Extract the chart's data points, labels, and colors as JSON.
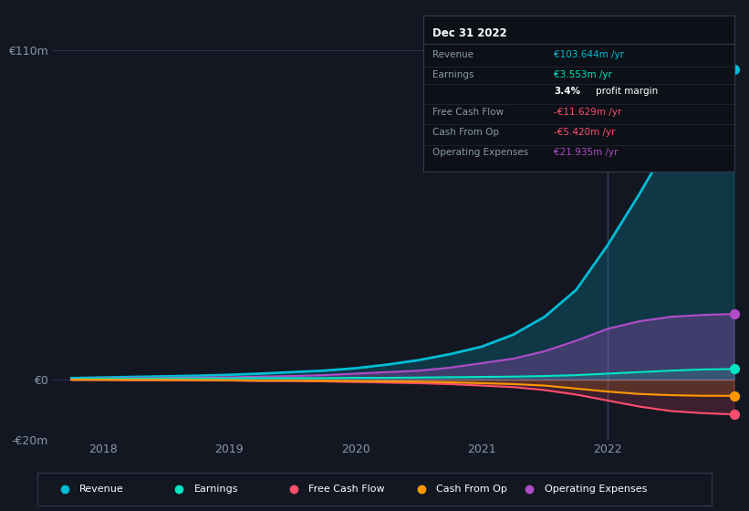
{
  "bg_color": "#131722",
  "plot_bg_color": "#131722",
  "grid_color": "#1e2535",
  "title_box": {
    "date": "Dec 31 2022",
    "rows": [
      {
        "label": "Revenue",
        "value": "€103.644m /yr",
        "value_color": "#00bcd4"
      },
      {
        "label": "Earnings",
        "value": "€3.553m /yr",
        "value_color": "#00e5c0"
      },
      {
        "label": "",
        "value": "3.4% profit margin",
        "value_color": "#ffffff"
      },
      {
        "label": "Free Cash Flow",
        "value": "-€11.629m /yr",
        "value_color": "#ff4d6d"
      },
      {
        "label": "Cash From Op",
        "value": "-€5.420m /yr",
        "value_color": "#ff4d6d"
      },
      {
        "label": "Operating Expenses",
        "value": "€21.935m /yr",
        "value_color": "#b04cc8"
      }
    ]
  },
  "ylim": [
    -20,
    120
  ],
  "yticks": [
    -20,
    0,
    110
  ],
  "ytick_labels": [
    "-€20m",
    "€0",
    "€110m"
  ],
  "xlim": [
    2017.6,
    2023.0
  ],
  "xticks": [
    2018,
    2019,
    2020,
    2021,
    2022
  ],
  "vline_x": 2022.0,
  "series": {
    "revenue": {
      "color": "#00bcd4",
      "fill_color": "#00bcd4",
      "fill_alpha": 0.2,
      "label": "Revenue",
      "dot_color": "#00bcd4"
    },
    "earnings": {
      "color": "#00e5c0",
      "fill_color": "#00e5c0",
      "fill_alpha": 0.15,
      "label": "Earnings",
      "dot_color": "#00e5c0"
    },
    "fcf": {
      "color": "#ff4d6d",
      "fill_color": "#ff4d6d",
      "fill_alpha": 0.18,
      "label": "Free Cash Flow",
      "dot_color": "#ff4d6d"
    },
    "cfo": {
      "color": "#ff9800",
      "fill_color": "#ff9800",
      "fill_alpha": 0.15,
      "label": "Cash From Op",
      "dot_color": "#ff9800"
    },
    "opex": {
      "color": "#b04cc8",
      "fill_color": "#b04cc8",
      "fill_alpha": 0.3,
      "label": "Operating Expenses",
      "dot_color": "#b04cc8"
    }
  },
  "x": [
    2017.75,
    2018.0,
    2018.25,
    2018.5,
    2018.75,
    2019.0,
    2019.25,
    2019.5,
    2019.75,
    2020.0,
    2020.25,
    2020.5,
    2020.75,
    2021.0,
    2021.25,
    2021.5,
    2021.75,
    2022.0,
    2022.25,
    2022.5,
    2022.75,
    2023.0
  ],
  "revenue": [
    0.5,
    0.7,
    0.9,
    1.1,
    1.3,
    1.6,
    2.0,
    2.5,
    3.0,
    3.8,
    5.0,
    6.5,
    8.5,
    11.0,
    15.0,
    21.0,
    30.0,
    45.0,
    62.0,
    80.0,
    96.0,
    103.644
  ],
  "earnings": [
    0.2,
    0.3,
    0.3,
    0.4,
    0.4,
    0.4,
    0.5,
    0.5,
    0.5,
    0.6,
    0.6,
    0.7,
    0.8,
    0.9,
    1.0,
    1.2,
    1.5,
    2.0,
    2.5,
    3.0,
    3.4,
    3.553
  ],
  "fcf": [
    -0.1,
    -0.1,
    -0.2,
    -0.2,
    -0.3,
    -0.3,
    -0.5,
    -0.5,
    -0.6,
    -0.8,
    -1.0,
    -1.2,
    -1.5,
    -2.0,
    -2.5,
    -3.5,
    -5.0,
    -7.0,
    -9.0,
    -10.5,
    -11.2,
    -11.629
  ],
  "cfo": [
    -0.05,
    -0.05,
    -0.1,
    -0.1,
    -0.15,
    -0.2,
    -0.3,
    -0.3,
    -0.4,
    -0.5,
    -0.6,
    -0.7,
    -0.9,
    -1.2,
    -1.5,
    -2.0,
    -3.0,
    -4.0,
    -4.8,
    -5.2,
    -5.4,
    -5.42
  ],
  "opex": [
    0.3,
    0.4,
    0.5,
    0.6,
    0.7,
    0.8,
    1.0,
    1.2,
    1.5,
    2.0,
    2.5,
    3.0,
    4.0,
    5.5,
    7.0,
    9.5,
    13.0,
    17.0,
    19.5,
    21.0,
    21.6,
    21.935
  ],
  "legend": [
    {
      "label": "Revenue",
      "color": "#00bcd4"
    },
    {
      "label": "Earnings",
      "color": "#00e5c0"
    },
    {
      "label": "Free Cash Flow",
      "color": "#ff4d6d"
    },
    {
      "label": "Cash From Op",
      "color": "#ff9800"
    },
    {
      "label": "Operating Expenses",
      "color": "#b04cc8"
    }
  ],
  "box_facecolor": "#0d1117",
  "box_border_color": "#333a50",
  "separator_color": "#222840",
  "label_color": "#8899aa",
  "tick_color": "#8899aa"
}
